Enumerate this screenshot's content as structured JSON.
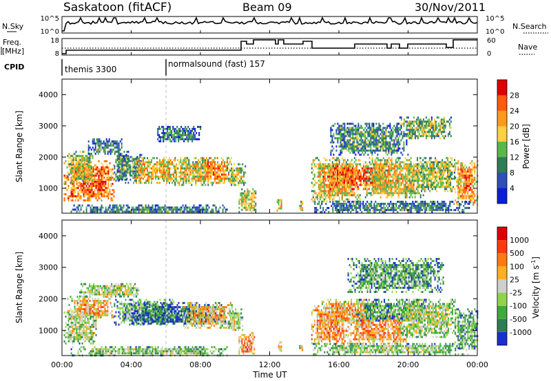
{
  "header": {
    "station": "Saskatoon (fitACF)",
    "beam": "Beam 09",
    "date": "30/Nov/2011"
  },
  "top_panels": {
    "nsky_label": "N.Sky",
    "nsky_ticks": [
      "10^5",
      "10^0"
    ],
    "nsearch_label": "N.Search",
    "freq_label": "Freq.",
    "freq_unit": "[MHz]",
    "freq_ticks": [
      "18",
      "8"
    ],
    "nave_ticks": [
      "60",
      "0"
    ],
    "nave_label": "Nave",
    "cpid_label": "CPID",
    "cpid_entries": [
      "themis 3300",
      "normalsound (fast) 157"
    ]
  },
  "x_axis": {
    "label": "Time UT",
    "ticks": [
      "00:00",
      "04:00",
      "08:00",
      "12:00",
      "16:00",
      "20:00",
      "00:00"
    ]
  },
  "chart_data": [
    {
      "type": "heatmap",
      "panel": "power",
      "ylabel": "Slant Range [km]",
      "yticks": [
        "1000",
        "2000",
        "3000",
        "4000"
      ],
      "ylim": [
        200,
        4500
      ],
      "x_range_hours": [
        0,
        24
      ],
      "colorbar_label": "Power [dB]",
      "colorbar_ticks": [
        "28",
        "24",
        "20",
        "16",
        "12",
        "8",
        "4"
      ],
      "colors": [
        "#0a1fd8",
        "#2f50b8",
        "#2e7d55",
        "#58b84a",
        "#ffd040",
        "#ff9a1a",
        "#ff5a10",
        "#e00000"
      ],
      "blobs": [
        {
          "t0": 0.1,
          "t1": 3.0,
          "r0": 600,
          "r1": 1900,
          "v": 0.78
        },
        {
          "t0": 0.3,
          "t1": 1.8,
          "r0": 1200,
          "r1": 2200,
          "v": 0.55
        },
        {
          "t0": 3.0,
          "t1": 3.9,
          "r0": 1200,
          "r1": 2200,
          "v": 0.42
        },
        {
          "t0": 3.2,
          "t1": 4.6,
          "r0": 1300,
          "r1": 2100,
          "v": 0.35
        },
        {
          "t0": 4.1,
          "t1": 6.7,
          "r0": 1200,
          "r1": 2000,
          "v": 0.62
        },
        {
          "t0": 6.5,
          "t1": 8.8,
          "r0": 1100,
          "r1": 2000,
          "v": 0.58
        },
        {
          "t0": 8.0,
          "t1": 9.8,
          "r0": 1200,
          "r1": 2000,
          "v": 0.72
        },
        {
          "t0": 9.6,
          "t1": 10.6,
          "r0": 1100,
          "r1": 1800,
          "v": 0.5
        },
        {
          "t0": 10.2,
          "t1": 11.2,
          "r0": 250,
          "r1": 1000,
          "v": 0.55
        },
        {
          "t0": 1.5,
          "t1": 3.5,
          "r0": 2100,
          "r1": 2600,
          "v": 0.3
        },
        {
          "t0": 5.5,
          "t1": 8.0,
          "r0": 2500,
          "r1": 3000,
          "v": 0.28
        },
        {
          "t0": 0.5,
          "t1": 9.5,
          "r0": 220,
          "r1": 480,
          "v": 0.3
        },
        {
          "t0": 14.4,
          "t1": 17.2,
          "r0": 600,
          "r1": 2000,
          "v": 0.62
        },
        {
          "t0": 15.0,
          "t1": 19.0,
          "r0": 1000,
          "r1": 1800,
          "v": 0.82
        },
        {
          "t0": 17.5,
          "t1": 21.0,
          "r0": 700,
          "r1": 2000,
          "v": 0.58
        },
        {
          "t0": 20.5,
          "t1": 22.7,
          "r0": 900,
          "r1": 2000,
          "v": 0.5
        },
        {
          "t0": 22.7,
          "t1": 24.0,
          "r0": 500,
          "r1": 1900,
          "v": 0.7
        },
        {
          "t0": 15.5,
          "t1": 20.0,
          "r0": 2100,
          "r1": 3100,
          "v": 0.35
        },
        {
          "t0": 19.5,
          "t1": 22.5,
          "r0": 2600,
          "r1": 3300,
          "v": 0.45
        },
        {
          "t0": 14.5,
          "t1": 23.5,
          "r0": 250,
          "r1": 600,
          "v": 0.3
        },
        {
          "t0": 12.4,
          "t1": 12.7,
          "r0": 280,
          "r1": 650,
          "v": 0.62
        },
        {
          "t0": 13.7,
          "t1": 13.9,
          "r0": 280,
          "r1": 600,
          "v": 0.55
        }
      ]
    },
    {
      "type": "heatmap",
      "panel": "velocity",
      "ylabel": "Slant Range [km]",
      "yticks": [
        "1000",
        "2000",
        "3000",
        "4000"
      ],
      "ylim": [
        200,
        4500
      ],
      "x_range_hours": [
        0,
        24
      ],
      "colorbar_label": "Velocity [m s",
      "colorbar_label_sup": "-1",
      "colorbar_label_end": "]",
      "colorbar_ticks": [
        "1000",
        "500",
        "100",
        "25",
        "-25",
        "-100",
        "-500",
        "-1000"
      ],
      "colors": [
        "#1a2fd0",
        "#2e7d55",
        "#3daa3a",
        "#8fd44a",
        "#cfcfcf",
        "#ffb020",
        "#ff7a10",
        "#ff3a10",
        "#e00000"
      ],
      "blobs": [
        {
          "t0": 0.1,
          "t1": 2.0,
          "r0": 600,
          "r1": 1600,
          "v": 0.45
        },
        {
          "t0": 0.3,
          "t1": 3.0,
          "r0": 1400,
          "r1": 2100,
          "v": 0.6
        },
        {
          "t0": 3.0,
          "t1": 6.5,
          "r0": 1200,
          "r1": 2000,
          "v": 0.35
        },
        {
          "t0": 4.0,
          "t1": 9.5,
          "r0": 1200,
          "r1": 1900,
          "v": 0.15
        },
        {
          "t0": 7.0,
          "t1": 9.8,
          "r0": 1100,
          "r1": 1900,
          "v": 0.6
        },
        {
          "t0": 9.6,
          "t1": 10.4,
          "r0": 1000,
          "r1": 1700,
          "v": 0.45
        },
        {
          "t0": 10.2,
          "t1": 11.1,
          "r0": 250,
          "r1": 950,
          "v": 0.7
        },
        {
          "t0": 1.0,
          "t1": 4.5,
          "r0": 2100,
          "r1": 2500,
          "v": 0.45
        },
        {
          "t0": 0.5,
          "t1": 9.5,
          "r0": 220,
          "r1": 500,
          "v": 0.4
        },
        {
          "t0": 14.4,
          "t1": 16.5,
          "r0": 600,
          "r1": 1800,
          "v": 0.7
        },
        {
          "t0": 15.0,
          "t1": 18.0,
          "r0": 1200,
          "r1": 2000,
          "v": 0.62
        },
        {
          "t0": 16.5,
          "t1": 20.0,
          "r0": 600,
          "r1": 1600,
          "v": 0.66
        },
        {
          "t0": 17.0,
          "t1": 21.0,
          "r0": 1300,
          "r1": 2000,
          "v": 0.3
        },
        {
          "t0": 19.5,
          "t1": 22.7,
          "r0": 800,
          "r1": 2000,
          "v": 0.45
        },
        {
          "t0": 22.7,
          "t1": 24.0,
          "r0": 400,
          "r1": 1700,
          "v": 0.32
        },
        {
          "t0": 16.5,
          "t1": 22.0,
          "r0": 2200,
          "r1": 3300,
          "v": 0.3
        },
        {
          "t0": 14.5,
          "t1": 23.5,
          "r0": 250,
          "r1": 600,
          "v": 0.4
        },
        {
          "t0": 12.4,
          "t1": 12.7,
          "r0": 280,
          "r1": 650,
          "v": 0.6
        },
        {
          "t0": 13.7,
          "t1": 13.9,
          "r0": 280,
          "r1": 600,
          "v": 0.6
        }
      ]
    }
  ]
}
